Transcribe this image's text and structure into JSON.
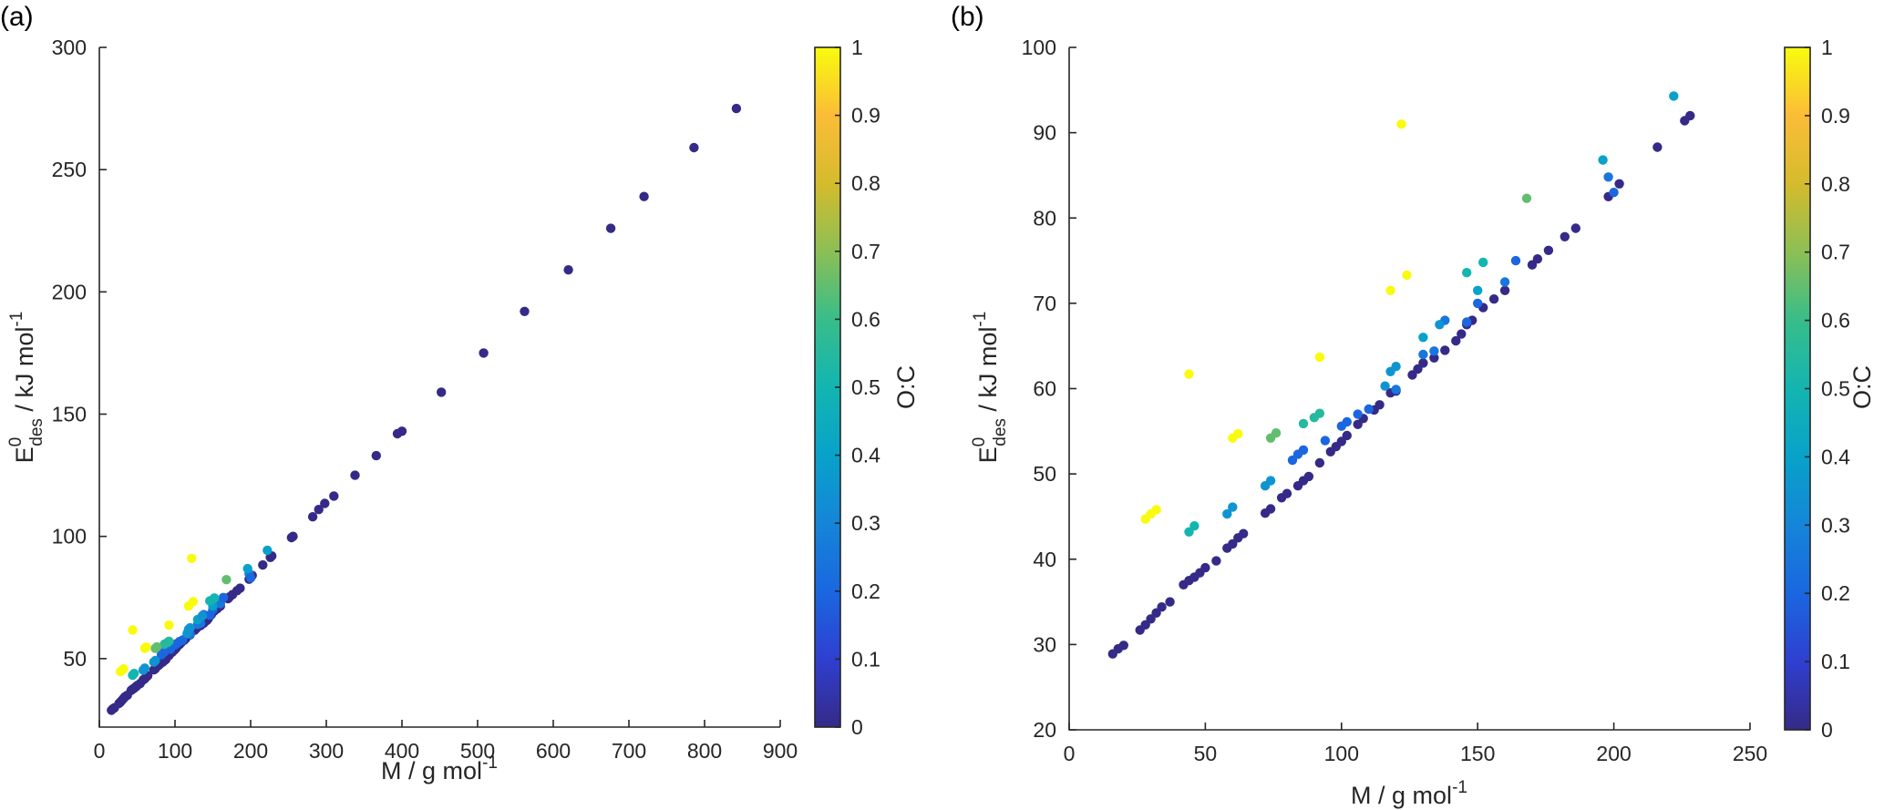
{
  "chart_data": [
    {
      "panel_label": "(a)",
      "type": "scatter",
      "xlabel": {
        "main": "M / g mol",
        "sup": "-1"
      },
      "ylabel": {
        "main": "E",
        "sup": "0",
        "sub": "des",
        "rest": " / kJ mol",
        "rest_sup": "-1"
      },
      "xlim": [
        0,
        900
      ],
      "ylim": [
        22,
        300
      ],
      "xticks": [
        0,
        100,
        200,
        300,
        400,
        500,
        600,
        700,
        800,
        900
      ],
      "yticks": [
        50,
        100,
        150,
        200,
        250,
        300
      ],
      "colorbar": {
        "label": "O:C",
        "lim": [
          0,
          1
        ],
        "ticks": [
          "0",
          "0.1",
          "0.2",
          "0.3",
          "0.4",
          "0.5",
          "0.6",
          "0.7",
          "0.8",
          "0.9",
          "1"
        ]
      },
      "points": [
        [
          16,
          28.9,
          0
        ],
        [
          18,
          29.5,
          0
        ],
        [
          20,
          29.9,
          0
        ],
        [
          26,
          31.7,
          0
        ],
        [
          28,
          32.3,
          0
        ],
        [
          30,
          33.0,
          0
        ],
        [
          32,
          33.7,
          0
        ],
        [
          34,
          34.4,
          0
        ],
        [
          37,
          35.0,
          0
        ],
        [
          42,
          37.0,
          0
        ],
        [
          44,
          37.5,
          0
        ],
        [
          46,
          37.9,
          0
        ],
        [
          48,
          38.4,
          0
        ],
        [
          50,
          39.0,
          0
        ],
        [
          54,
          39.8,
          0
        ],
        [
          58,
          41.3,
          0
        ],
        [
          60,
          41.8,
          0
        ],
        [
          62,
          42.5,
          0
        ],
        [
          64,
          43.0,
          0
        ],
        [
          72,
          45.4,
          0
        ],
        [
          74,
          45.9,
          0
        ],
        [
          78,
          47.2,
          0
        ],
        [
          80,
          47.7,
          0
        ],
        [
          84,
          48.6,
          0
        ],
        [
          86,
          49.2,
          0
        ],
        [
          88,
          49.7,
          0
        ],
        [
          92,
          51.3,
          0
        ],
        [
          96,
          52.6,
          0
        ],
        [
          98,
          53.2,
          0
        ],
        [
          100,
          53.8,
          0
        ],
        [
          102,
          54.5,
          0
        ],
        [
          106,
          55.8,
          0
        ],
        [
          108,
          56.5,
          0
        ],
        [
          112,
          57.5,
          0
        ],
        [
          114,
          58.1,
          0
        ],
        [
          118,
          59.5,
          0
        ],
        [
          120,
          59.7,
          0
        ],
        [
          126,
          61.6,
          0
        ],
        [
          128,
          62.3,
          0
        ],
        [
          130,
          63.0,
          0
        ],
        [
          134,
          63.6,
          0
        ],
        [
          138,
          64.5,
          0
        ],
        [
          142,
          65.6,
          0
        ],
        [
          144,
          66.4,
          0
        ],
        [
          146,
          67.5,
          0
        ],
        [
          148,
          68.0,
          0
        ],
        [
          152,
          69.5,
          0
        ],
        [
          156,
          70.5,
          0
        ],
        [
          160,
          71.5,
          0
        ],
        [
          170,
          74.5,
          0
        ],
        [
          172,
          75.2,
          0
        ],
        [
          176,
          76.2,
          0
        ],
        [
          182,
          77.8,
          0
        ],
        [
          186,
          78.8,
          0
        ],
        [
          198,
          82.5,
          0
        ],
        [
          202,
          84.0,
          0
        ],
        [
          216,
          88.3,
          0
        ],
        [
          226,
          91.4,
          0
        ],
        [
          228,
          92.0,
          0
        ],
        [
          254,
          99.5,
          0
        ],
        [
          256,
          100,
          0
        ],
        [
          282,
          108,
          0
        ],
        [
          290,
          111,
          0
        ],
        [
          298,
          113.5,
          0
        ],
        [
          310,
          116.5,
          0
        ],
        [
          338,
          125,
          0
        ],
        [
          366,
          133,
          0
        ],
        [
          394,
          142,
          0
        ],
        [
          400,
          143,
          0
        ],
        [
          452,
          159,
          0
        ],
        [
          508,
          175,
          0
        ],
        [
          562,
          192,
          0
        ],
        [
          620,
          209,
          0
        ],
        [
          676,
          226,
          0
        ],
        [
          720,
          239,
          0
        ],
        [
          786,
          259,
          0
        ],
        [
          842,
          275,
          0
        ],
        [
          82,
          51.6,
          0.2
        ],
        [
          84,
          52.3,
          0.2
        ],
        [
          86,
          52.8,
          0.2
        ],
        [
          94,
          53.9,
          0.2
        ],
        [
          100,
          55.6,
          0.2
        ],
        [
          102,
          56.1,
          0.2
        ],
        [
          106,
          57.0,
          0.2
        ],
        [
          110,
          57.6,
          0.2
        ],
        [
          120,
          59.9,
          0.25
        ],
        [
          130,
          64.0,
          0.25
        ],
        [
          134,
          64.4,
          0.25
        ],
        [
          138,
          68.0,
          0.25
        ],
        [
          146,
          67.8,
          0.2
        ],
        [
          150,
          70.0,
          0.2
        ],
        [
          160,
          72.5,
          0.25
        ],
        [
          164,
          75.0,
          0.2
        ],
        [
          198,
          84.8,
          0.25
        ],
        [
          200,
          83.0,
          0.2
        ],
        [
          58,
          45.3,
          0.35
        ],
        [
          60,
          46.1,
          0.35
        ],
        [
          72,
          48.6,
          0.35
        ],
        [
          74,
          49.2,
          0.35
        ],
        [
          116,
          60.3,
          0.35
        ],
        [
          118,
          62.0,
          0.35
        ],
        [
          120,
          62.6,
          0.35
        ],
        [
          130,
          66.0,
          0.4
        ],
        [
          136,
          67.5,
          0.35
        ],
        [
          150,
          71.5,
          0.4
        ],
        [
          196,
          86.8,
          0.4
        ],
        [
          222,
          94.3,
          0.4
        ],
        [
          44,
          43.2,
          0.5
        ],
        [
          46,
          43.9,
          0.5
        ],
        [
          86,
          55.9,
          0.55
        ],
        [
          90,
          56.6,
          0.55
        ],
        [
          92,
          57.1,
          0.55
        ],
        [
          146,
          73.6,
          0.5
        ],
        [
          152,
          74.8,
          0.5
        ],
        [
          74,
          54.2,
          0.65
        ],
        [
          76,
          54.8,
          0.65
        ],
        [
          168,
          82.3,
          0.65
        ],
        [
          28,
          44.7,
          1
        ],
        [
          30,
          45.3,
          1
        ],
        [
          32,
          45.8,
          1
        ],
        [
          44,
          61.7,
          1
        ],
        [
          60,
          54.2,
          1
        ],
        [
          62,
          54.7,
          1
        ],
        [
          92,
          63.7,
          1
        ],
        [
          118,
          71.5,
          1
        ],
        [
          122,
          91.0,
          1
        ],
        [
          124,
          73.3,
          1
        ]
      ]
    },
    {
      "panel_label": "(b)",
      "type": "scatter",
      "xlabel": {
        "main": "M / g mol",
        "sup": "-1"
      },
      "ylabel": {
        "main": "E",
        "sup": "0",
        "sub": "des",
        "rest": " / kJ mol",
        "rest_sup": "-1"
      },
      "xlim": [
        0,
        250
      ],
      "ylim": [
        20,
        100
      ],
      "xticks": [
        0,
        50,
        100,
        150,
        200,
        250
      ],
      "yticks": [
        20,
        30,
        40,
        50,
        60,
        70,
        80,
        90,
        100
      ],
      "colorbar": {
        "label": "O:C",
        "lim": [
          0,
          1
        ],
        "ticks": [
          "0",
          "0.1",
          "0.2",
          "0.3",
          "0.4",
          "0.5",
          "0.6",
          "0.7",
          "0.8",
          "0.9",
          "1"
        ]
      },
      "points": [
        [
          16,
          28.9,
          0
        ],
        [
          18,
          29.5,
          0
        ],
        [
          20,
          29.9,
          0
        ],
        [
          26,
          31.7,
          0
        ],
        [
          28,
          32.3,
          0
        ],
        [
          30,
          33.0,
          0
        ],
        [
          32,
          33.7,
          0
        ],
        [
          34,
          34.4,
          0
        ],
        [
          37,
          35.0,
          0
        ],
        [
          42,
          37.0,
          0
        ],
        [
          44,
          37.5,
          0
        ],
        [
          46,
          37.9,
          0
        ],
        [
          48,
          38.4,
          0
        ],
        [
          50,
          39.0,
          0
        ],
        [
          54,
          39.8,
          0
        ],
        [
          58,
          41.3,
          0
        ],
        [
          60,
          41.8,
          0
        ],
        [
          62,
          42.5,
          0
        ],
        [
          64,
          43.0,
          0
        ],
        [
          72,
          45.4,
          0
        ],
        [
          74,
          45.9,
          0
        ],
        [
          78,
          47.2,
          0
        ],
        [
          80,
          47.7,
          0
        ],
        [
          84,
          48.6,
          0
        ],
        [
          86,
          49.2,
          0
        ],
        [
          88,
          49.7,
          0
        ],
        [
          92,
          51.3,
          0
        ],
        [
          96,
          52.6,
          0
        ],
        [
          98,
          53.2,
          0
        ],
        [
          100,
          53.8,
          0
        ],
        [
          102,
          54.5,
          0
        ],
        [
          106,
          55.8,
          0
        ],
        [
          108,
          56.5,
          0
        ],
        [
          112,
          57.5,
          0
        ],
        [
          114,
          58.1,
          0
        ],
        [
          118,
          59.5,
          0
        ],
        [
          120,
          59.7,
          0
        ],
        [
          126,
          61.6,
          0
        ],
        [
          128,
          62.3,
          0
        ],
        [
          130,
          63.0,
          0
        ],
        [
          134,
          63.6,
          0
        ],
        [
          138,
          64.5,
          0
        ],
        [
          142,
          65.6,
          0
        ],
        [
          144,
          66.4,
          0
        ],
        [
          146,
          67.5,
          0
        ],
        [
          148,
          68.0,
          0
        ],
        [
          152,
          69.5,
          0
        ],
        [
          156,
          70.5,
          0
        ],
        [
          160,
          71.5,
          0
        ],
        [
          170,
          74.5,
          0
        ],
        [
          172,
          75.2,
          0
        ],
        [
          176,
          76.2,
          0
        ],
        [
          182,
          77.8,
          0
        ],
        [
          186,
          78.8,
          0
        ],
        [
          198,
          82.5,
          0
        ],
        [
          202,
          84.0,
          0
        ],
        [
          216,
          88.3,
          0
        ],
        [
          226,
          91.4,
          0
        ],
        [
          228,
          92.0,
          0
        ],
        [
          82,
          51.6,
          0.2
        ],
        [
          84,
          52.3,
          0.2
        ],
        [
          86,
          52.8,
          0.2
        ],
        [
          94,
          53.9,
          0.2
        ],
        [
          100,
          55.6,
          0.2
        ],
        [
          102,
          56.1,
          0.2
        ],
        [
          106,
          57.0,
          0.2
        ],
        [
          110,
          57.6,
          0.2
        ],
        [
          120,
          59.9,
          0.25
        ],
        [
          130,
          64.0,
          0.25
        ],
        [
          134,
          64.4,
          0.25
        ],
        [
          138,
          68.0,
          0.25
        ],
        [
          146,
          67.8,
          0.2
        ],
        [
          150,
          70.0,
          0.2
        ],
        [
          160,
          72.5,
          0.25
        ],
        [
          164,
          75.0,
          0.2
        ],
        [
          198,
          84.8,
          0.25
        ],
        [
          200,
          83.0,
          0.2
        ],
        [
          58,
          45.3,
          0.35
        ],
        [
          60,
          46.1,
          0.35
        ],
        [
          72,
          48.6,
          0.35
        ],
        [
          74,
          49.2,
          0.35
        ],
        [
          116,
          60.3,
          0.35
        ],
        [
          118,
          62.0,
          0.35
        ],
        [
          120,
          62.6,
          0.35
        ],
        [
          130,
          66.0,
          0.4
        ],
        [
          136,
          67.5,
          0.35
        ],
        [
          150,
          71.5,
          0.4
        ],
        [
          196,
          86.8,
          0.4
        ],
        [
          222,
          94.3,
          0.4
        ],
        [
          44,
          43.2,
          0.5
        ],
        [
          46,
          43.9,
          0.5
        ],
        [
          86,
          55.9,
          0.55
        ],
        [
          90,
          56.6,
          0.55
        ],
        [
          92,
          57.1,
          0.55
        ],
        [
          146,
          73.6,
          0.5
        ],
        [
          152,
          74.8,
          0.5
        ],
        [
          74,
          54.2,
          0.65
        ],
        [
          76,
          54.8,
          0.65
        ],
        [
          168,
          82.3,
          0.65
        ],
        [
          28,
          44.7,
          1
        ],
        [
          30,
          45.3,
          1
        ],
        [
          32,
          45.8,
          1
        ],
        [
          44,
          61.7,
          1
        ],
        [
          60,
          54.2,
          1
        ],
        [
          62,
          54.7,
          1
        ],
        [
          92,
          63.7,
          1
        ],
        [
          118,
          71.5,
          1
        ],
        [
          122,
          91.0,
          1
        ],
        [
          124,
          73.3,
          1
        ]
      ]
    }
  ]
}
